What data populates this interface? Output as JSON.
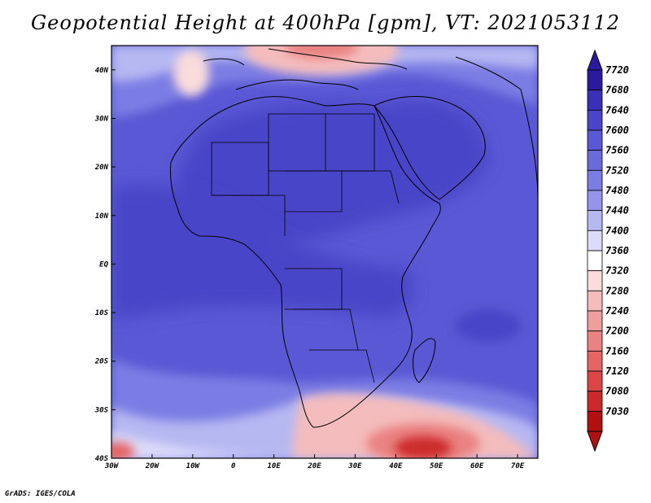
{
  "title": "Geopotential Height at 400hPa [gpm], VT: 2021053112",
  "footer": "GrADS: IGES/COLA",
  "map": {
    "lon_range": [
      -30,
      75
    ],
    "lat_range": [
      -40,
      45
    ],
    "x_ticks": [
      "30W",
      "20W",
      "10W",
      "0",
      "10E",
      "20E",
      "30E",
      "40E",
      "50E",
      "60E",
      "70E"
    ],
    "y_ticks": [
      "40N",
      "30N",
      "20N",
      "10N",
      "EQ",
      "10S",
      "20S",
      "30S",
      "40S"
    ]
  },
  "colorbar": {
    "levels": [
      "7720",
      "7680",
      "7640",
      "7600",
      "7560",
      "7520",
      "7480",
      "7440",
      "7400",
      "7360",
      "7320",
      "7280",
      "7240",
      "7200",
      "7160",
      "7120",
      "7080",
      "7030"
    ],
    "colors": [
      "#2a1a9e",
      "#3a30b8",
      "#4a45c8",
      "#5a58d4",
      "#6a6add",
      "#7c7de4",
      "#9394ea",
      "#b6b8f2",
      "#dcdcfa",
      "#ffffff",
      "#fadcdc",
      "#f4bcbc",
      "#ef9e9e",
      "#ea8282",
      "#e56464",
      "#dd4646",
      "#cc2a2a",
      "#b01010"
    ]
  }
}
